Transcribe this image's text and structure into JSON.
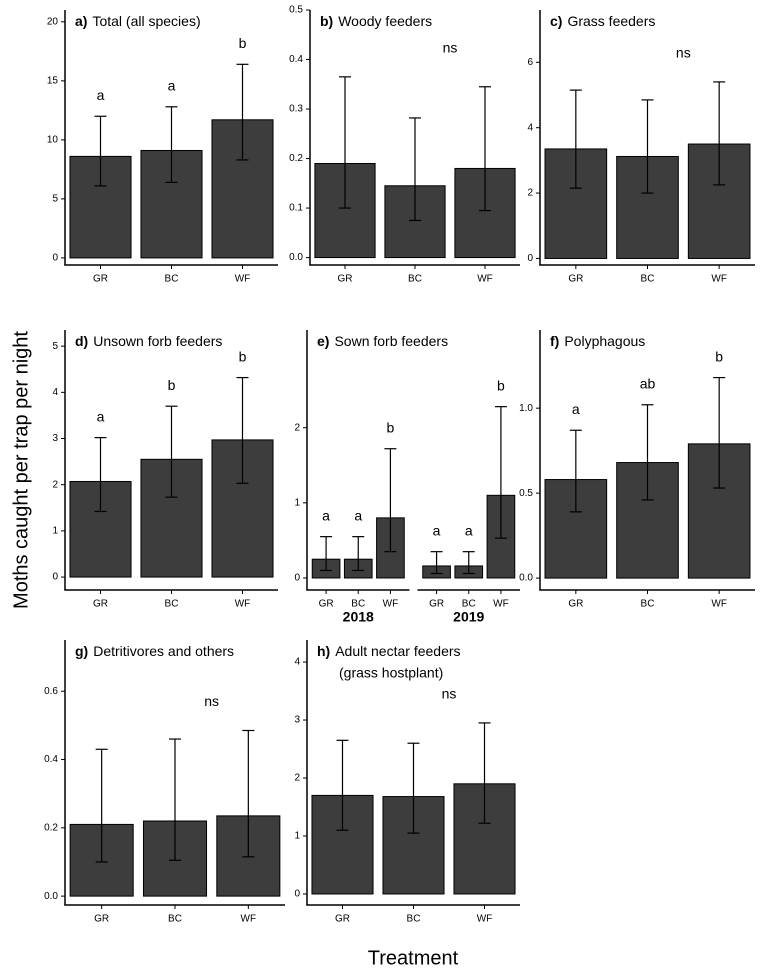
{
  "y_label": "Moths caught per trap per night",
  "x_label": "Treatment",
  "chart_data": [
    {
      "type": "bar",
      "label": "a)",
      "title": "Total (all species)",
      "color": "#3d3d3d",
      "categories": [
        "GR",
        "BC",
        "WF"
      ],
      "values": [
        8.6,
        9.1,
        11.7
      ],
      "ci": [
        [
          6.1,
          12.0
        ],
        [
          6.4,
          12.8
        ],
        [
          8.3,
          16.4
        ]
      ],
      "letters": [
        "a",
        "a",
        "b"
      ],
      "ylim": [
        -0.6,
        21
      ],
      "yticks": [
        0,
        5,
        10,
        15,
        20
      ]
    },
    {
      "type": "bar",
      "label": "b)",
      "title": "Woody feeders",
      "color": "#3d3d3d",
      "categories": [
        "GR",
        "BC",
        "WF"
      ],
      "values": [
        0.19,
        0.145,
        0.18
      ],
      "ci": [
        [
          0.1,
          0.365
        ],
        [
          0.075,
          0.282
        ],
        [
          0.095,
          0.345
        ]
      ],
      "annotation": "ns",
      "ylim": [
        -0.015,
        0.5
      ],
      "yticks": [
        {
          "value": 0,
          "label": "0.0"
        },
        0.1,
        0.2,
        0.3,
        0.4,
        0.5
      ]
    },
    {
      "type": "bar",
      "label": "c)",
      "title": "Grass feeders",
      "color": "#3d3d3d",
      "categories": [
        "GR",
        "BC",
        "WF"
      ],
      "values": [
        3.35,
        3.12,
        3.5
      ],
      "ci": [
        [
          2.15,
          5.15
        ],
        [
          2.0,
          4.85
        ],
        [
          2.25,
          5.4
        ]
      ],
      "annotation": "ns",
      "ylim": [
        -0.2,
        7.6
      ],
      "yticks": [
        0,
        2,
        4,
        6
      ]
    },
    {
      "type": "bar",
      "label": "d)",
      "title": "Unsown forb feeders",
      "color": "#3d3d3d",
      "categories": [
        "GR",
        "BC",
        "WF"
      ],
      "values": [
        2.07,
        2.55,
        2.97
      ],
      "ci": [
        [
          1.42,
          3.02
        ],
        [
          1.73,
          3.7
        ],
        [
          2.03,
          4.32
        ]
      ],
      "letters": [
        "a",
        "b",
        "b"
      ],
      "ylim": [
        -0.28,
        5.35
      ],
      "yticks": [
        0,
        1,
        2,
        3,
        4,
        5
      ]
    },
    {
      "type": "bar",
      "label": "e)",
      "title": "Sown forb feeders",
      "color": "#3d3d3d",
      "groups": [
        {
          "name": "2018",
          "categories": [
            "GR",
            "BC",
            "WF"
          ],
          "values": [
            0.25,
            0.25,
            0.8
          ],
          "ci": [
            [
              0.1,
              0.55
            ],
            [
              0.1,
              0.55
            ],
            [
              0.35,
              1.72
            ]
          ],
          "letters": [
            "a",
            "a",
            "b"
          ]
        },
        {
          "name": "2019",
          "categories": [
            "GR",
            "BC",
            "WF"
          ],
          "values": [
            0.16,
            0.16,
            1.1
          ],
          "ci": [
            [
              0.06,
              0.35
            ],
            [
              0.06,
              0.35
            ],
            [
              0.53,
              2.28
            ]
          ],
          "letters": [
            "a",
            "a",
            "b"
          ]
        }
      ],
      "ylim": [
        -0.16,
        3.3
      ],
      "yticks": [
        0,
        1,
        2
      ]
    },
    {
      "type": "bar",
      "label": "f)",
      "title": "Polyphagous",
      "color": "#3d3d3d",
      "categories": [
        "GR",
        "BC",
        "WF"
      ],
      "values": [
        0.58,
        0.68,
        0.79
      ],
      "ci": [
        [
          0.39,
          0.87
        ],
        [
          0.46,
          1.02
        ],
        [
          0.53,
          1.18
        ]
      ],
      "letters": [
        "a",
        "ab",
        "b"
      ],
      "ylim": [
        -0.07,
        1.46
      ],
      "yticks": [
        {
          "value": 0,
          "label": "0.0"
        },
        0.5,
        {
          "value": 1,
          "label": "1.0"
        }
      ]
    },
    {
      "type": "bar",
      "label": "g)",
      "title": "Detritivores and others",
      "color": "#3d3d3d",
      "categories": [
        "GR",
        "BC",
        "WF"
      ],
      "values": [
        0.21,
        0.22,
        0.235
      ],
      "ci": [
        [
          0.1,
          0.43
        ],
        [
          0.105,
          0.46
        ],
        [
          0.115,
          0.485
        ]
      ],
      "annotation": "ns",
      "ylim": [
        -0.026,
        0.75
      ],
      "yticks": [
        {
          "value": 0,
          "label": "0.0"
        },
        0.2,
        0.4,
        0.6
      ]
    },
    {
      "type": "bar",
      "label": "h)",
      "title": [
        "Adult nectar feeders",
        "(grass hostplant)"
      ],
      "color": "#3d3d3d",
      "categories": [
        "GR",
        "BC",
        "WF"
      ],
      "values": [
        1.7,
        1.68,
        1.9
      ],
      "ci": [
        [
          1.1,
          2.65
        ],
        [
          1.05,
          2.6
        ],
        [
          1.22,
          2.95
        ]
      ],
      "annotation": "ns",
      "ylim": [
        -0.19,
        4.38
      ],
      "yticks": [
        0,
        1,
        2,
        3,
        4
      ]
    }
  ]
}
